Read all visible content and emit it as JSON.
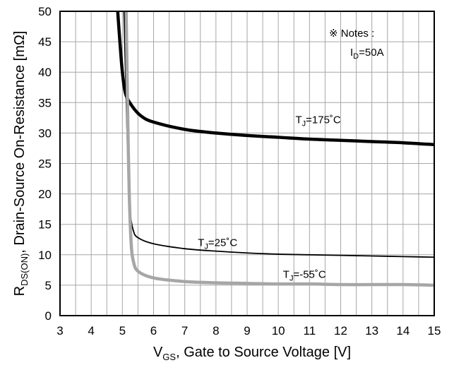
{
  "chart_data": {
    "type": "line",
    "xlim": [
      3,
      15
    ],
    "ylim": [
      0,
      50
    ],
    "x_ticks": [
      3,
      4,
      5,
      6,
      7,
      8,
      9,
      10,
      11,
      12,
      13,
      14,
      15
    ],
    "y_ticks": [
      0,
      5,
      10,
      15,
      20,
      25,
      30,
      35,
      40,
      45,
      50
    ],
    "grid": true,
    "xlabel": {
      "main": "V",
      "sub": "GS",
      "rest": ", Gate to Source Voltage [V]"
    },
    "ylabel": {
      "main": "R",
      "sub": "DS(ON)",
      "rest": ", Drain-Source On-Resistance [mΩ]"
    },
    "notes": {
      "title": "※ Notes :",
      "line_main": "I",
      "line_sub": "D",
      "line_rest": "=50A"
    },
    "series": [
      {
        "label_main": "T",
        "label_sub": "J",
        "label_rest": "=175˚C",
        "color": "#000000",
        "width": 4.5,
        "points": [
          [
            4.85,
            50
          ],
          [
            4.92,
            45
          ],
          [
            5.0,
            40
          ],
          [
            5.1,
            36.5
          ],
          [
            5.3,
            34.5
          ],
          [
            5.6,
            32.8
          ],
          [
            6.0,
            31.8
          ],
          [
            7.0,
            30.6
          ],
          [
            8.0,
            30.0
          ],
          [
            9.0,
            29.6
          ],
          [
            10.0,
            29.3
          ],
          [
            11.0,
            29.0
          ],
          [
            12.0,
            28.8
          ],
          [
            13.0,
            28.6
          ],
          [
            14.0,
            28.4
          ],
          [
            15.0,
            28.1
          ]
        ]
      },
      {
        "label_main": "T",
        "label_sub": "J",
        "label_rest": "=25˚C",
        "color": "#000000",
        "width": 1.8,
        "points": [
          [
            5.05,
            50
          ],
          [
            5.1,
            40
          ],
          [
            5.15,
            30
          ],
          [
            5.2,
            22
          ],
          [
            5.25,
            17
          ],
          [
            5.35,
            14
          ],
          [
            5.5,
            12.8
          ],
          [
            6.0,
            11.8
          ],
          [
            7.0,
            11.0
          ],
          [
            8.0,
            10.6
          ],
          [
            9.0,
            10.3
          ],
          [
            10.0,
            10.1
          ],
          [
            11.0,
            10.0
          ],
          [
            12.0,
            9.9
          ],
          [
            13.0,
            9.8
          ],
          [
            14.0,
            9.7
          ],
          [
            15.0,
            9.6
          ]
        ]
      },
      {
        "label_main": "T",
        "label_sub": "J",
        "label_rest": "=-55˚C",
        "color": "#a6a6a6",
        "width": 4.5,
        "points": [
          [
            5.12,
            50
          ],
          [
            5.15,
            40
          ],
          [
            5.18,
            30
          ],
          [
            5.22,
            20
          ],
          [
            5.28,
            12
          ],
          [
            5.35,
            9
          ],
          [
            5.5,
            7.3
          ],
          [
            6.0,
            6.2
          ],
          [
            7.0,
            5.6
          ],
          [
            8.0,
            5.4
          ],
          [
            9.0,
            5.3
          ],
          [
            10.0,
            5.2
          ],
          [
            11.0,
            5.2
          ],
          [
            12.0,
            5.1
          ],
          [
            13.0,
            5.1
          ],
          [
            14.0,
            5.1
          ],
          [
            15.0,
            5.0
          ]
        ]
      }
    ]
  }
}
